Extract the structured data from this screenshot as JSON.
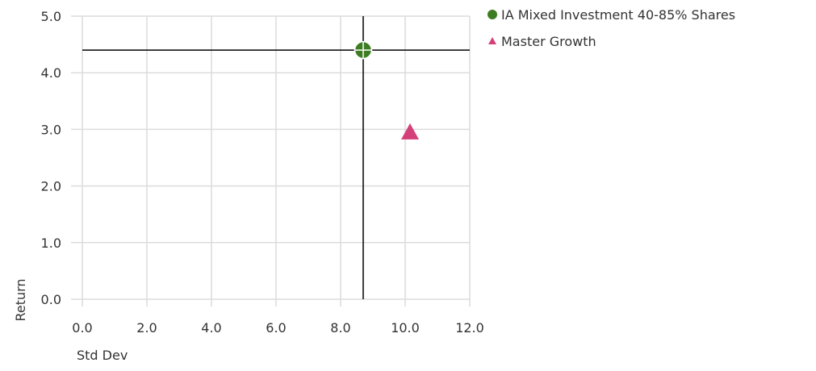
{
  "chart_data": {
    "type": "scatter",
    "title": "",
    "xlabel": "Std Dev",
    "ylabel": "Return",
    "xlim": [
      0,
      12
    ],
    "ylim": [
      0,
      5
    ],
    "x_ticks": [
      "0.0",
      "2.0",
      "4.0",
      "6.0",
      "8.0",
      "10.0",
      "12.0"
    ],
    "y_ticks": [
      "0.0",
      "1.0",
      "2.0",
      "3.0",
      "4.0",
      "5.0"
    ],
    "grid": true,
    "legend_position": "top-right",
    "series": [
      {
        "name": "IA Mixed Investment 40-85% Shares",
        "marker": "circle",
        "color": "#3c7d22",
        "points": [
          {
            "x": 8.7,
            "y": 4.4
          }
        ]
      },
      {
        "name": "Master Growth",
        "marker": "triangle",
        "color": "#d4407a",
        "points": [
          {
            "x": 10.15,
            "y": 2.95
          }
        ]
      }
    ],
    "crosshair": {
      "x": 8.7,
      "y": 4.4,
      "color": "#000000"
    }
  }
}
